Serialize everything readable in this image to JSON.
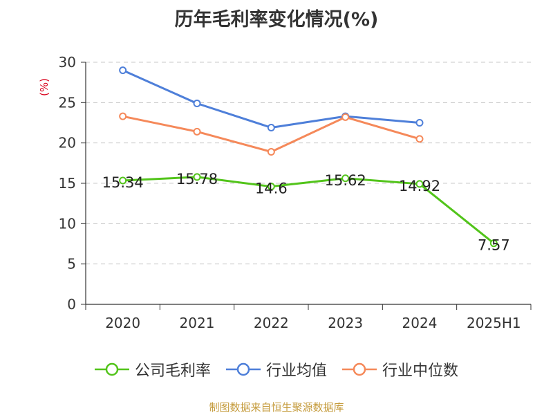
{
  "chart_data": {
    "type": "line",
    "title": "历年毛利率变化情况(%)",
    "ylabel": "(%)",
    "xlabel": "",
    "categories": [
      "2020",
      "2021",
      "2022",
      "2023",
      "2024",
      "2025H1"
    ],
    "ylim": [
      0,
      30
    ],
    "yticks": [
      0,
      5,
      10,
      15,
      20,
      25,
      30
    ],
    "grid": true,
    "legend_position": "bottom",
    "series": [
      {
        "name": "公司毛利率",
        "values": [
          15.34,
          15.78,
          14.6,
          15.62,
          14.92,
          7.57
        ],
        "labels": [
          "15.34",
          "15.78",
          "14.6",
          "15.62",
          "14.92",
          "7.57"
        ],
        "color": "#52c41a"
      },
      {
        "name": "行业均值",
        "values": [
          29.0,
          24.9,
          21.9,
          23.3,
          22.5,
          null
        ],
        "color": "#4e7fd9"
      },
      {
        "name": "行业中位数",
        "values": [
          23.3,
          21.4,
          18.9,
          23.2,
          20.5,
          null
        ],
        "color": "#f5895a"
      }
    ]
  },
  "footer": {
    "source": "制图数据来自恒生聚源数据库"
  },
  "colors": {
    "grid": "#c8c8c8",
    "axis": "#333333",
    "ylabel": "#d9001b",
    "source": "#c49a3a"
  }
}
